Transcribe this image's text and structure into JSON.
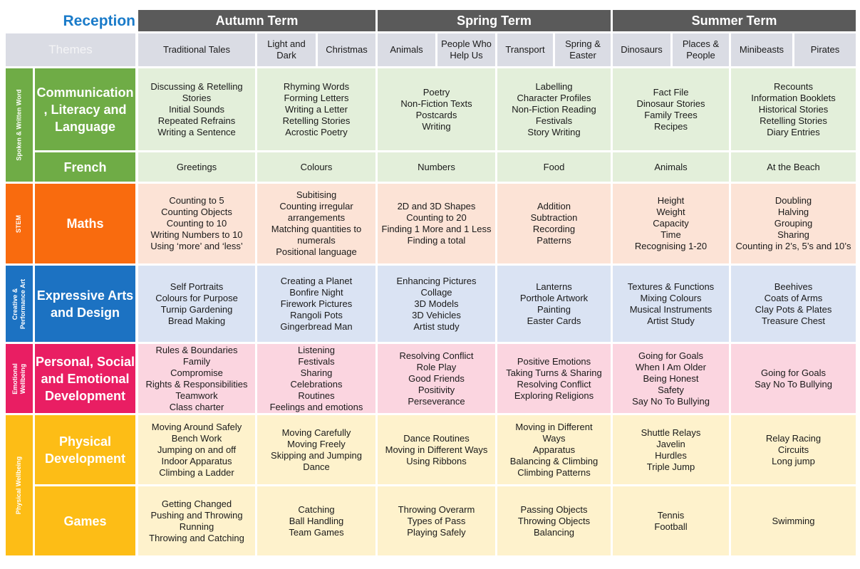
{
  "title": "Reception",
  "themes_label": "Themes",
  "terms": [
    {
      "name": "Autumn Term",
      "themes": [
        "Traditional Tales",
        "Light and Dark",
        "Christmas"
      ]
    },
    {
      "name": "Spring Term",
      "themes": [
        "Animals",
        "People Who Help Us",
        "Transport",
        "Spring & Easter"
      ]
    },
    {
      "name": "Summer Term",
      "themes": [
        "Dinosaurs",
        "Places & People",
        "Minibeasts",
        "Pirates"
      ]
    }
  ],
  "colors": {
    "header_dark": "#5a5a5a",
    "theme_bg": "#dadce4",
    "reception": "#1a7bc9",
    "green": "#6fac46",
    "green_light": "#e3efda",
    "orange": "#f96b0e",
    "orange_light": "#fce3d6",
    "blue": "#1c72c2",
    "blue_light": "#dae3f3",
    "pink": "#e91e63",
    "pink_light": "#fbd5e0",
    "yellow": "#fdbd16",
    "yellow_light": "#fef2cc"
  },
  "groups": [
    {
      "label": "Spoken & Written Word",
      "color": "#6fac46",
      "light": "#e3efda",
      "subjects": [
        {
          "name": "Communication, Literacy and Language",
          "name_lines": [
            "Communication",
            ", Literacy and",
            "Language"
          ],
          "cells": [
            [
              "Discussing & Retelling",
              "Stories",
              "Initial Sounds",
              "Repeated Refrains",
              "Writing a Sentence"
            ],
            [
              "Rhyming Words",
              "Forming Letters",
              "Writing a Letter",
              "Retelling Stories",
              "Acrostic Poetry"
            ],
            [
              "Poetry",
              "Non-Fiction Texts",
              "Postcards",
              "Writing"
            ],
            [
              "Labelling",
              "Character Profiles",
              "Non-Fiction Reading",
              "Festivals",
              "Story Writing"
            ],
            [
              "Fact File",
              "Dinosaur Stories",
              "Family Trees",
              "Recipes"
            ],
            [
              "Recounts",
              "Information Booklets",
              "Historical Stories",
              "Retelling Stories",
              "Diary Entries"
            ]
          ]
        },
        {
          "name": "French",
          "name_lines": [
            "French"
          ],
          "cells": [
            [
              "Greetings"
            ],
            [
              "Colours"
            ],
            [
              "Numbers"
            ],
            [
              "Food"
            ],
            [
              "Animals"
            ],
            [
              "At the Beach"
            ]
          ]
        }
      ]
    },
    {
      "label": "STEM",
      "color": "#f96b0e",
      "light": "#fce3d6",
      "subjects": [
        {
          "name": "Maths",
          "name_lines": [
            "Maths"
          ],
          "cells": [
            [
              "Counting to 5",
              "Counting Objects",
              "Counting to 10",
              "Writing Numbers to 10",
              "Using ‘more’ and ‘less’"
            ],
            [
              "Subitising",
              "Counting irregular",
              "arrangements",
              "Matching quantities to",
              "numerals",
              "Positional language"
            ],
            [
              "2D and 3D Shapes",
              "Counting to 20",
              "Finding 1 More and 1 Less",
              "Finding a total"
            ],
            [
              "Addition",
              "Subtraction",
              "Recording",
              "Patterns"
            ],
            [
              "Height",
              "Weight",
              "Capacity",
              "Time",
              "Recognising 1-20"
            ],
            [
              "Doubling",
              "Halving",
              "Grouping",
              "Sharing",
              "Counting in 2’s, 5’s and 10’s"
            ]
          ]
        }
      ]
    },
    {
      "label": "Creative & Performance Art",
      "label_lines": [
        "Creative &",
        "Performance Art"
      ],
      "color": "#1c72c2",
      "light": "#dae3f3",
      "subjects": [
        {
          "name": "Expressive Arts and Design",
          "name_lines": [
            "Expressive Arts",
            "and Design"
          ],
          "cells": [
            [
              "Self Portraits",
              "Colours for Purpose",
              "Turnip Gardening",
              "Bread Making"
            ],
            [
              "Creating a Planet",
              "Bonfire Night",
              "Firework Pictures",
              "Rangoli Pots",
              "Gingerbread Man"
            ],
            [
              "Enhancing Pictures",
              "Collage",
              "3D Models",
              "3D Vehicles",
              "Artist study"
            ],
            [
              "Lanterns",
              "Porthole Artwork",
              "Painting",
              "Easter Cards"
            ],
            [
              "Textures & Functions",
              "Mixing Colours",
              "Musical Instruments",
              "Artist Study"
            ],
            [
              "Beehives",
              "Coats of Arms",
              "Clay Pots & Plates",
              "Treasure Chest"
            ]
          ]
        }
      ]
    },
    {
      "label": "Emotional Wellbeing",
      "label_lines": [
        "Emotional",
        "Wellbeing"
      ],
      "color": "#e91e63",
      "light": "#fbd5e0",
      "subjects": [
        {
          "name": "Personal, Social and Emotional Development",
          "name_lines": [
            "Personal, Social",
            "and Emotional",
            "Development"
          ],
          "cells": [
            [
              "Rules & Boundaries",
              "Family",
              "Compromise",
              "Rights & Responsibilities",
              "Teamwork",
              "Class charter"
            ],
            [
              "Listening",
              "Festivals",
              "Sharing",
              "Celebrations",
              "Routines",
              "Feelings and emotions"
            ],
            [
              "Resolving Conflict",
              "Role Play",
              "Good Friends",
              "Positivity",
              "Perseverance"
            ],
            [
              "Positive Emotions",
              "Taking Turns & Sharing",
              "Resolving Conflict",
              "Exploring Religions"
            ],
            [
              "Going for Goals",
              "When I Am Older",
              "Being Honest",
              "Safety",
              "Say No To Bullying"
            ],
            [
              "Going for Goals",
              "Say No To Bullying"
            ]
          ]
        }
      ]
    },
    {
      "label": "Physical Wellbeing",
      "color": "#fdbd16",
      "light": "#fef2cc",
      "subjects": [
        {
          "name": "Physical Development",
          "name_lines": [
            "Physical",
            "Development"
          ],
          "cells": [
            [
              "Moving Around Safely",
              "Bench Work",
              "Jumping on and off",
              "Indoor Apparatus",
              "Climbing a Ladder"
            ],
            [
              "Moving Carefully",
              "Moving Freely",
              "Skipping and Jumping",
              "Dance"
            ],
            [
              "Dance Routines",
              "Moving in Different Ways",
              "Using Ribbons"
            ],
            [
              "Moving in Different",
              "Ways",
              "Apparatus",
              "Balancing & Climbing",
              "Climbing Patterns"
            ],
            [
              "Shuttle Relays",
              "Javelin",
              "Hurdles",
              "Triple Jump"
            ],
            [
              "Relay Racing",
              "Circuits",
              "Long jump"
            ]
          ]
        },
        {
          "name": "Games",
          "name_lines": [
            "Games"
          ],
          "cells": [
            [
              "Getting Changed",
              "Pushing and Throwing",
              "Running",
              "Throwing and Catching"
            ],
            [
              "Catching",
              "Ball Handling",
              "Team Games"
            ],
            [
              "Throwing Overarm",
              "Types of Pass",
              "Playing Safely"
            ],
            [
              "Passing Objects",
              "Throwing Objects",
              "Balancing"
            ],
            [
              "Tennis",
              "Football"
            ],
            [
              "Swimming"
            ]
          ]
        }
      ]
    }
  ]
}
